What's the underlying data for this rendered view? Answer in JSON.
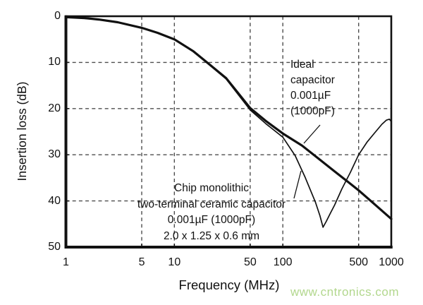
{
  "chart_data": {
    "type": "line",
    "title": "",
    "xlabel": "Frequency (MHz)",
    "ylabel": "Insertion loss (dB)",
    "x_scale": "log",
    "x_range": [
      1,
      1000
    ],
    "y_range": [
      0,
      50
    ],
    "y_inverted": true,
    "grid": true,
    "legend_position": "none",
    "x_ticks": [
      {
        "value": 1,
        "label": "1"
      },
      {
        "value": 5,
        "label": "5"
      },
      {
        "value": 10,
        "label": "10"
      },
      {
        "value": 50,
        "label": "50"
      },
      {
        "value": 100,
        "label": "100"
      },
      {
        "value": 500,
        "label": "500"
      },
      {
        "value": 1000,
        "label": "1000"
      }
    ],
    "y_ticks": [
      {
        "value": 0,
        "label": "0"
      },
      {
        "value": 10,
        "label": "10"
      },
      {
        "value": 20,
        "label": "20"
      },
      {
        "value": 30,
        "label": "30"
      },
      {
        "value": 40,
        "label": "40"
      },
      {
        "value": 50,
        "label": "50"
      }
    ],
    "x_gridlines": [
      5,
      10,
      50,
      100,
      500
    ],
    "y_gridlines": [
      10,
      20,
      30,
      40
    ],
    "series": [
      {
        "name": "Ideal capacitor 0.001µF (1000pF)",
        "stroke_width": 3.2,
        "points": [
          [
            1,
            0.2
          ],
          [
            1.5,
            0.4
          ],
          [
            2,
            0.7
          ],
          [
            3,
            1.3
          ],
          [
            5,
            2.5
          ],
          [
            7,
            3.6
          ],
          [
            10,
            5.0
          ],
          [
            15,
            7.6
          ],
          [
            20,
            10.0
          ],
          [
            30,
            13.4
          ],
          [
            50,
            19.9
          ],
          [
            70,
            22.7
          ],
          [
            100,
            25.4
          ],
          [
            150,
            28.0
          ],
          [
            200,
            30.3
          ],
          [
            300,
            33.6
          ],
          [
            400,
            35.9
          ],
          [
            500,
            37.7
          ],
          [
            700,
            40.7
          ],
          [
            1000,
            43.9
          ]
        ]
      },
      {
        "name": "Chip monolithic two-terminal ceramic capacitor 0.001µF (1000pF) 2.0 x 1.25 x 0.6 mm",
        "stroke_width": 1.7,
        "points": [
          [
            1,
            0.2
          ],
          [
            2,
            0.7
          ],
          [
            3,
            1.3
          ],
          [
            5,
            2.5
          ],
          [
            7,
            3.6
          ],
          [
            10,
            5.0
          ],
          [
            15,
            7.7
          ],
          [
            20,
            10.1
          ],
          [
            30,
            13.6
          ],
          [
            50,
            20.3
          ],
          [
            70,
            23.3
          ],
          [
            100,
            26.2
          ],
          [
            130,
            30.2
          ],
          [
            160,
            34.8
          ],
          [
            200,
            40.3
          ],
          [
            220,
            43.2
          ],
          [
            235,
            45.7
          ],
          [
            252,
            44.4
          ],
          [
            275,
            42.6
          ],
          [
            300,
            40.9
          ],
          [
            350,
            37.4
          ],
          [
            420,
            33.8
          ],
          [
            500,
            30.0
          ],
          [
            600,
            27.2
          ],
          [
            700,
            25.3
          ],
          [
            820,
            23.4
          ],
          [
            900,
            22.5
          ],
          [
            960,
            22.3
          ],
          [
            1000,
            22.8
          ]
        ]
      }
    ],
    "annotations": [
      {
        "text": "Ideal capacitor 0.001µF (1000pF)",
        "points_to_series": "ideal"
      },
      {
        "text": "Chip monolithic two-terminal ceramic capacitor 0.001µF (1000pF) 2.0 x 1.25 x 0.6 mm",
        "points_to_series": "chip"
      }
    ]
  },
  "labels": {
    "x_axis": "Frequency (MHz)",
    "y_axis": "Insertion loss (dB)"
  },
  "annotations": {
    "ideal_label": {
      "line1": "Ideal",
      "line2": "capacitor",
      "line3": "0.001µF",
      "line4": "(1000pF)"
    },
    "chip_label": {
      "line1": "Chip monolithic",
      "line2": "two-terminal ceramic capacitor",
      "line3": "0.001µF (1000pF)",
      "line4": "2.0 x 1.25 x 0.6 mm"
    }
  },
  "watermark": {
    "text": "www.cntronics.com",
    "color": "#b2d78d"
  },
  "colors": {
    "curve": "#111111",
    "frame": "#111111",
    "gridline": "#4d4d4d",
    "background": "#ffffff",
    "text": "#111111"
  }
}
